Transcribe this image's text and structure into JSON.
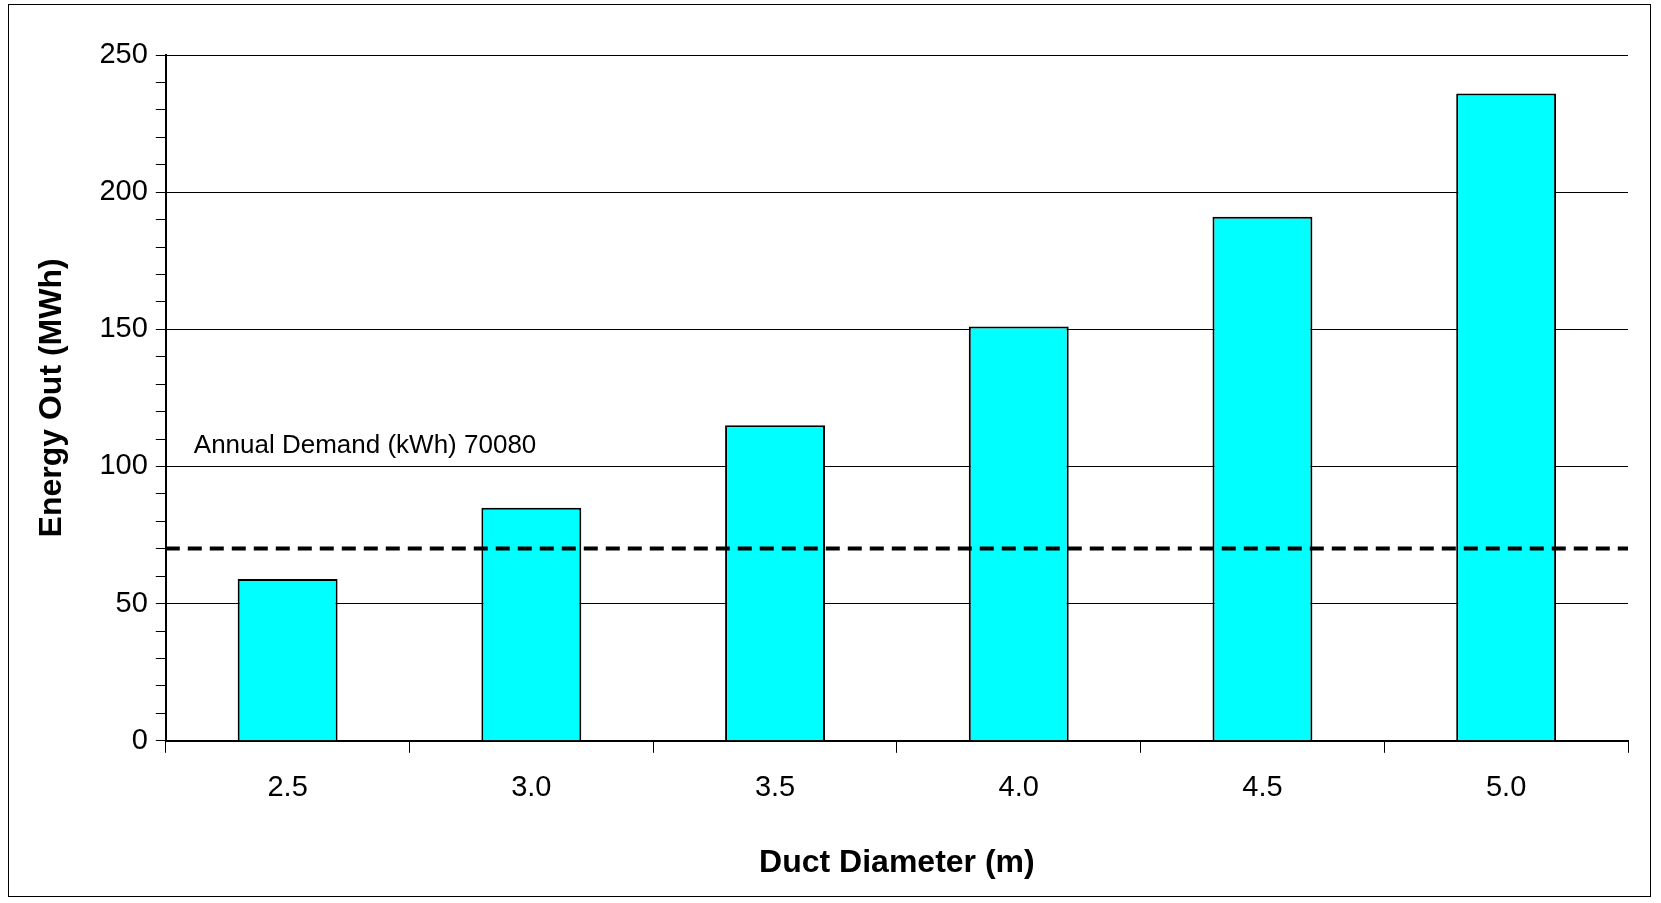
{
  "chart_data": {
    "type": "bar",
    "xlabel": "Duct Diameter (m)",
    "ylabel": "Energy Out (MWh)",
    "categories": [
      "2.5",
      "3.0",
      "3.5",
      "4.0",
      "4.5",
      "5.0"
    ],
    "values": [
      59,
      85,
      115,
      151,
      191,
      236
    ],
    "color": "#00ffff",
    "ylim": [
      0,
      250
    ],
    "yticks": [
      0,
      {
        "value": 10,
        "label": null
      },
      {
        "value": 20,
        "label": null
      },
      {
        "value": 30,
        "label": null
      },
      {
        "value": 40,
        "label": null
      },
      50,
      {
        "value": 60,
        "label": null
      },
      {
        "value": 70,
        "label": null
      },
      {
        "value": 80,
        "label": null
      },
      {
        "value": 90,
        "label": null
      },
      100,
      {
        "value": 110,
        "label": null
      },
      {
        "value": 120,
        "label": null
      },
      {
        "value": 130,
        "label": null
      },
      {
        "value": 140,
        "label": null
      },
      150,
      {
        "value": 160,
        "label": null
      },
      {
        "value": 170,
        "label": null
      },
      {
        "value": 180,
        "label": null
      },
      {
        "value": 190,
        "label": null
      },
      200,
      {
        "value": 210,
        "label": null
      },
      {
        "value": 220,
        "label": null
      },
      {
        "value": 230,
        "label": null
      },
      {
        "value": 240,
        "label": null
      },
      250
    ],
    "grid": "y",
    "legend": false,
    "ref_lines": [
      {
        "axis": "y",
        "value": 70.08,
        "label": "Annual Demand (kWh) 70080",
        "color": "#000000",
        "line_style": "dashed"
      }
    ]
  }
}
